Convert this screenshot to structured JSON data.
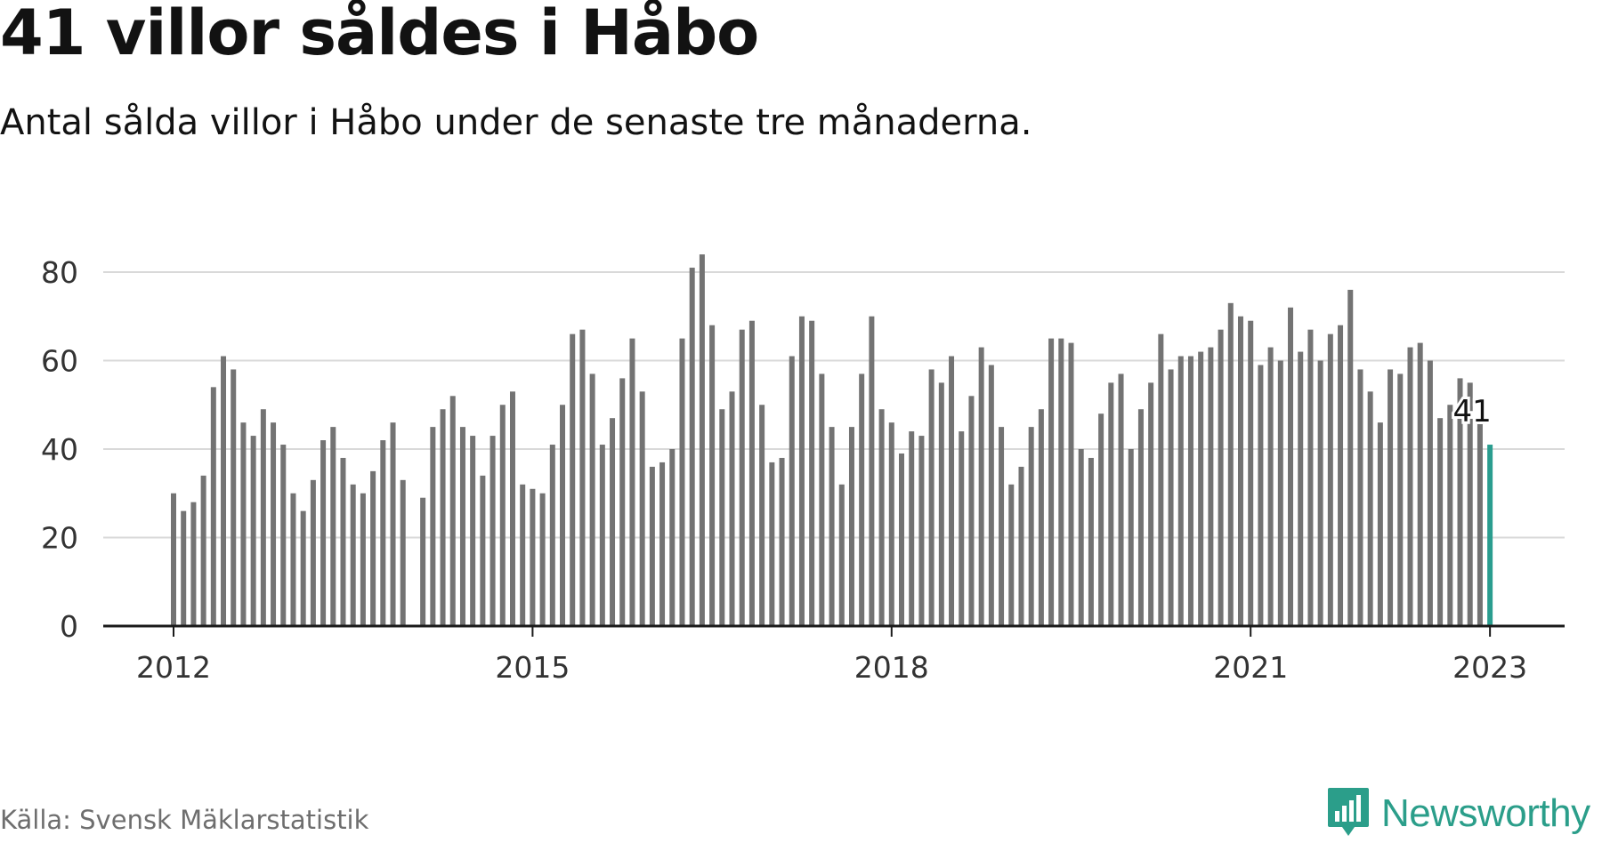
{
  "header": {
    "title": "41 villor såldes i Håbo",
    "subtitle": "Antal sålda villor i Håbo under de senaste tre månaderna."
  },
  "footer": {
    "source": "Källa: Svensk Mäklarstatistik",
    "brand": "Newsworthy"
  },
  "colors": {
    "bar": "#737373",
    "highlight": "#2a9d8f",
    "grid": "#d9d9d9",
    "axis": "#1a1a1a",
    "brand": "#2b9e8a"
  },
  "chart_data": {
    "type": "bar",
    "title": "41 villor såldes i Håbo",
    "subtitle": "Antal sålda villor i Håbo under de senaste tre månaderna.",
    "x_start": "2012-01",
    "x_end": "2023-01",
    "x_interval": "month",
    "xticks": [
      "2012",
      "2015",
      "2018",
      "2021",
      "2023"
    ],
    "ylim": [
      0,
      85
    ],
    "yticks": [
      0,
      20,
      40,
      60,
      80
    ],
    "grid": true,
    "values": [
      30,
      26,
      28,
      34,
      54,
      61,
      58,
      46,
      43,
      49,
      46,
      41,
      30,
      26,
      33,
      42,
      45,
      38,
      32,
      30,
      35,
      42,
      46,
      33,
      null,
      29,
      45,
      49,
      52,
      45,
      43,
      34,
      43,
      50,
      53,
      32,
      31,
      30,
      41,
      50,
      66,
      67,
      57,
      41,
      47,
      56,
      65,
      53,
      36,
      37,
      40,
      65,
      81,
      84,
      68,
      49,
      53,
      67,
      69,
      50,
      37,
      38,
      61,
      70,
      69,
      57,
      45,
      32,
      45,
      57,
      70,
      49,
      46,
      39,
      44,
      43,
      58,
      55,
      61,
      44,
      52,
      63,
      59,
      45,
      32,
      36,
      45,
      49,
      65,
      65,
      64,
      40,
      38,
      48,
      55,
      57,
      40,
      49,
      55,
      66,
      58,
      61,
      61,
      62,
      63,
      67,
      73,
      70,
      69,
      59,
      63,
      60,
      72,
      62,
      67,
      60,
      66,
      68,
      76,
      58,
      53,
      46,
      58,
      57,
      63,
      64,
      60,
      47,
      50,
      56,
      55,
      46,
      41
    ],
    "highlight_last": true,
    "last_label": "41"
  }
}
